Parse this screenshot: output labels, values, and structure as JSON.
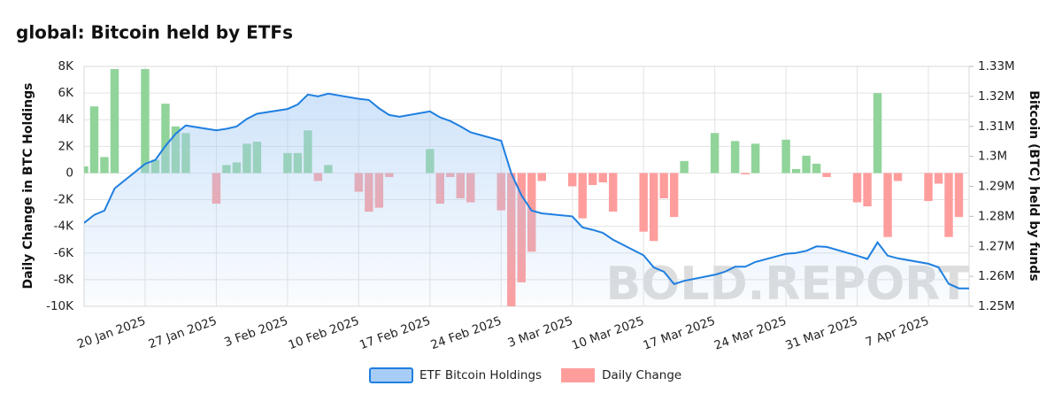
{
  "chart_data": {
    "type": "combo",
    "title": "global: Bitcoin held by ETFs",
    "ylabel": "Daily Change in BTC Holdings",
    "y2label": "Bitcoin (BTC) held by funds",
    "watermark": "BOLD.REPORT",
    "x": [
      "2025-01-14",
      "2025-01-15",
      "2025-01-16",
      "2025-01-17",
      "2025-01-20",
      "2025-01-21",
      "2025-01-22",
      "2025-01-23",
      "2025-01-24",
      "2025-01-27",
      "2025-01-28",
      "2025-01-29",
      "2025-01-30",
      "2025-01-31",
      "2025-02-03",
      "2025-02-04",
      "2025-02-05",
      "2025-02-06",
      "2025-02-07",
      "2025-02-10",
      "2025-02-11",
      "2025-02-12",
      "2025-02-13",
      "2025-02-14",
      "2025-02-17",
      "2025-02-18",
      "2025-02-19",
      "2025-02-20",
      "2025-02-21",
      "2025-02-24",
      "2025-02-25",
      "2025-02-26",
      "2025-02-27",
      "2025-02-28",
      "2025-03-03",
      "2025-03-04",
      "2025-03-05",
      "2025-03-06",
      "2025-03-07",
      "2025-03-10",
      "2025-03-11",
      "2025-03-12",
      "2025-03-13",
      "2025-03-14",
      "2025-03-17",
      "2025-03-18",
      "2025-03-19",
      "2025-03-20",
      "2025-03-21",
      "2025-03-24",
      "2025-03-25",
      "2025-03-26",
      "2025-03-27",
      "2025-03-28",
      "2025-03-31",
      "2025-04-01",
      "2025-04-02",
      "2025-04-03",
      "2025-04-04",
      "2025-04-07",
      "2025-04-08",
      "2025-04-09",
      "2025-04-10",
      "2025-04-11"
    ],
    "xlim": [
      "2025-01-14",
      "2025-04-11"
    ],
    "xticks": [
      {
        "value": "2025-01-20",
        "label": "20 Jan 2025"
      },
      {
        "value": "2025-01-27",
        "label": "27 Jan 2025"
      },
      {
        "value": "2025-02-03",
        "label": "3 Feb 2025"
      },
      {
        "value": "2025-02-10",
        "label": "10 Feb 2025"
      },
      {
        "value": "2025-02-17",
        "label": "17 Feb 2025"
      },
      {
        "value": "2025-02-24",
        "label": "24 Feb 2025"
      },
      {
        "value": "2025-03-03",
        "label": "3 Mar 2025"
      },
      {
        "value": "2025-03-10",
        "label": "10 Mar 2025"
      },
      {
        "value": "2025-03-17",
        "label": "17 Mar 2025"
      },
      {
        "value": "2025-03-24",
        "label": "24 Mar 2025"
      },
      {
        "value": "2025-03-31",
        "label": "31 Mar 2025"
      },
      {
        "value": "2025-04-07",
        "label": "7 Apr 2025"
      }
    ],
    "ylim": [
      -10000,
      8000
    ],
    "yticks": [
      {
        "value": -10000,
        "label": "-10K"
      },
      {
        "value": -8000,
        "label": "-8K"
      },
      {
        "value": -6000,
        "label": "-6K"
      },
      {
        "value": -4000,
        "label": "-4K"
      },
      {
        "value": -2000,
        "label": "-2K"
      },
      0,
      {
        "value": 2000,
        "label": "2K"
      },
      {
        "value": 4000,
        "label": "4K"
      },
      {
        "value": 6000,
        "label": "6K"
      },
      {
        "value": 8000,
        "label": "8K"
      }
    ],
    "y2lim": [
      1250000,
      1330000
    ],
    "y2ticks": [
      {
        "value": 1250000,
        "label": "1.25M"
      },
      {
        "value": 1260000,
        "label": "1.26M"
      },
      {
        "value": 1270000,
        "label": "1.27M"
      },
      {
        "value": 1280000,
        "label": "1.28M"
      },
      {
        "value": 1290000,
        "label": "1.29M"
      },
      {
        "value": 1300000,
        "label": "1.3M"
      },
      {
        "value": 1310000,
        "label": "1.31M"
      },
      {
        "value": 1320000,
        "label": "1.32M"
      },
      {
        "value": 1330000,
        "label": "1.33M"
      }
    ],
    "grid": true,
    "legend": "bottom",
    "series": [
      {
        "name": "ETF Bitcoin Holdings",
        "type": "line",
        "axis": "y2",
        "color": "#1f7fe0",
        "fill_color": "#a8cdf5",
        "values": [
          1277800,
          1280500,
          1281900,
          1289300,
          1297500,
          1298800,
          1303500,
          1307500,
          1310300,
          1308700,
          1309200,
          1310000,
          1312500,
          1314200,
          1315800,
          1317300,
          1320600,
          1320000,
          1320900,
          1319200,
          1318800,
          1316000,
          1313800,
          1313200,
          1315000,
          1313000,
          1311800,
          1310000,
          1308000,
          1305200,
          1294300,
          1287000,
          1281900,
          1281000,
          1280000,
          1276300,
          1275500,
          1274500,
          1272200,
          1267000,
          1263000,
          1261500,
          1257400,
          1258500,
          1260500,
          1261500,
          1263200,
          1263200,
          1264800,
          1267500,
          1267800,
          1268500,
          1270000,
          1269800,
          1266900,
          1265800,
          1271300,
          1266900,
          1266000,
          1264200,
          1263000,
          1257500,
          1256000,
          1256000
        ]
      },
      {
        "name": "Daily Change",
        "type": "bar",
        "color": "#ff9d9d",
        "positive_color": "#90d49a",
        "values": [
          500,
          5000,
          1200,
          7800,
          7800,
          1000,
          5200,
          3500,
          3000,
          -2300,
          600,
          800,
          2200,
          2350,
          1500,
          1500,
          3200,
          -600,
          600,
          -1400,
          -2900,
          -2600,
          -300,
          null,
          1800,
          -2300,
          -300,
          -1900,
          -2200,
          -2800,
          -10000,
          -8200,
          -5900,
          -600,
          -1000,
          -3400,
          -900,
          -700,
          -2900,
          -4400,
          -5100,
          -1900,
          -3300,
          900,
          3000,
          null,
          2400,
          -100,
          2200,
          2500,
          300,
          1300,
          700,
          -300,
          -2200,
          -2500,
          6000,
          -4800,
          -600,
          -2100,
          -800,
          -4800,
          -3300,
          null
        ]
      }
    ]
  }
}
